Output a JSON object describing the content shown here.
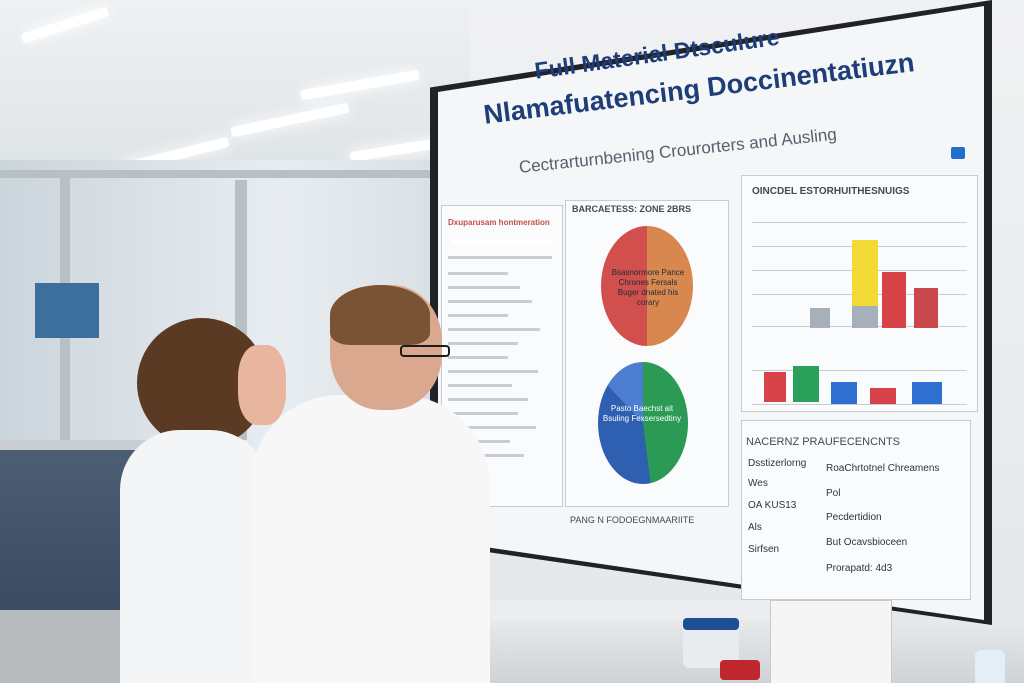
{
  "screen": {
    "title_line1": "Full Material Dtsculure",
    "title_line2": "Nlamafuatencing Doccinentatiuzn",
    "subtitle": "Cectrarturnbening Crourorters and Ausling",
    "left_panel_title": "Dxuparusam hontmeration",
    "mid_panel_title": "BARCAETESS: ZONE 2BRS",
    "mid_panel_footer": "PANG N FODOEGNMAARIITE",
    "pie_a_label": "Bsasnormore Pance Chrones Fersals Buger dnated his corary",
    "pie_b_label": "Pasto Baechst ait Bsuling Fexsersedtiny",
    "right_panel_title": "OINCDEL ESTORHUITHESNUIGS",
    "bottom_panel_title": "NACERNZ PRAUFECENCNTS",
    "table_rows": [
      {
        "left": "Dsstizerlorng",
        "right": "RoaChrtotnel Chreamens"
      },
      {
        "left": "Wes",
        "right": "Pol"
      },
      {
        "left": "OA KUS13",
        "right": "Pecdertidion"
      },
      {
        "left": "Als",
        "right": "But Ocavsbioceen"
      },
      {
        "left": "Sirfsen",
        "right": "Prorapatd: 4d3"
      }
    ]
  },
  "colors": {
    "title_blue": "#1f3d78",
    "bar_gray": "#a7b0ba",
    "bar_yellow": "#f2d934",
    "bar_red": "#d8434a",
    "bar_green": "#2aa05a",
    "bar_blue": "#2f6fd0"
  },
  "icons": {
    "screen_corner": "info-icon"
  }
}
